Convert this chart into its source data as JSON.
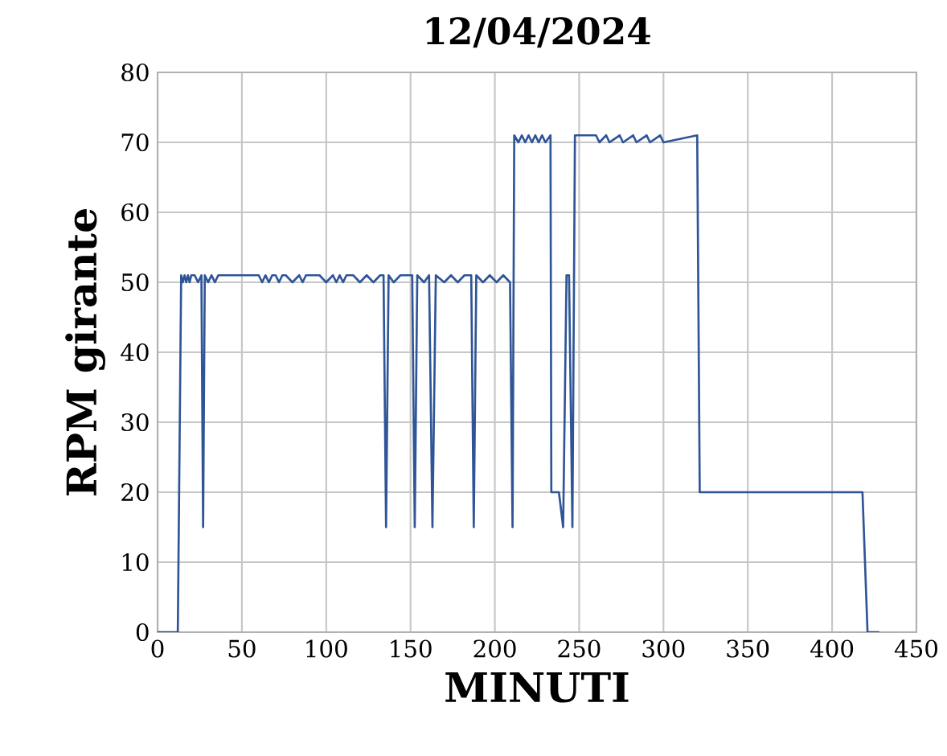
{
  "chart_data": {
    "type": "line",
    "title": "12/04/2024",
    "xlabel": "MINUTI",
    "ylabel": "RPM girante",
    "xlim": [
      0,
      450
    ],
    "xticks": [
      0,
      50,
      100,
      150,
      200,
      250,
      300,
      350,
      400,
      450
    ],
    "ylim": [
      0,
      80
    ],
    "yticks": [
      0,
      10,
      20,
      30,
      40,
      50,
      60,
      70,
      80
    ],
    "grid": true,
    "series": [
      {
        "color": "#2f5597",
        "x": [
          0,
          12,
          14,
          15,
          16,
          17,
          18,
          19,
          20,
          22,
          24,
          26,
          27,
          28,
          30,
          32,
          34,
          36,
          38,
          40,
          60,
          62,
          64,
          66,
          68,
          70,
          72,
          74,
          76,
          80,
          84,
          86,
          88,
          92,
          96,
          100,
          104,
          106,
          108,
          110,
          112,
          116,
          120,
          124,
          128,
          132,
          134,
          135.5,
          137,
          140,
          144,
          148,
          151,
          152.5,
          154,
          158,
          161,
          163,
          165,
          170,
          174,
          178,
          182,
          186,
          187.5,
          189,
          193,
          197,
          201,
          205,
          209,
          210.5,
          211.5,
          214,
          216,
          218,
          220,
          222,
          224,
          226,
          228,
          230,
          233,
          233.5,
          238,
          240.5,
          242.5,
          244,
          246,
          247.5,
          260,
          262,
          266,
          268,
          274,
          276,
          282,
          284,
          290,
          292,
          298,
          300,
          320,
          321.5,
          418,
          421,
          428
        ],
        "values": [
          0,
          0,
          51,
          50,
          51,
          50,
          51,
          50,
          51,
          51,
          50,
          51,
          15,
          51,
          50,
          51,
          50,
          51,
          51,
          51,
          51,
          50,
          51,
          50,
          51,
          51,
          50,
          51,
          51,
          50,
          51,
          50,
          51,
          51,
          51,
          50,
          51,
          50,
          51,
          50,
          51,
          51,
          50,
          51,
          50,
          51,
          51,
          15,
          51,
          50,
          51,
          51,
          51,
          15,
          51,
          50,
          51,
          15,
          51,
          50,
          51,
          50,
          51,
          51,
          15,
          51,
          50,
          51,
          50,
          51,
          50,
          15,
          71,
          70,
          71,
          70,
          71,
          70,
          71,
          70,
          71,
          70,
          71,
          20,
          20,
          15,
          51,
          51,
          15,
          71,
          71,
          70,
          71,
          70,
          71,
          70,
          71,
          70,
          71,
          70,
          71,
          70,
          71,
          20,
          20,
          0,
          0
        ]
      }
    ]
  }
}
